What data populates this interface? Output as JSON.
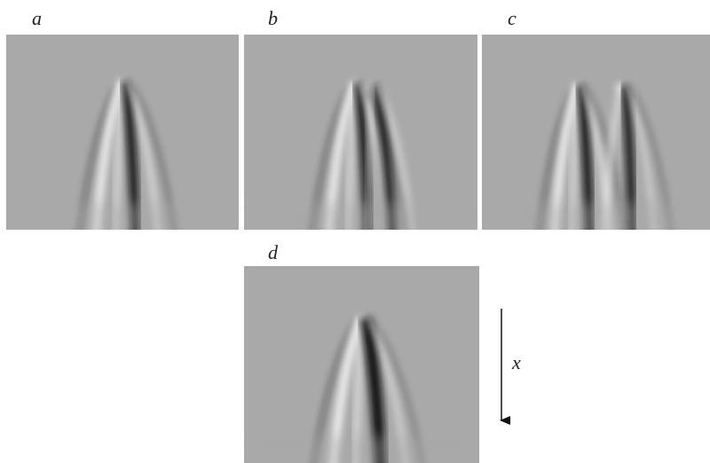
{
  "panels": [
    {
      "label": "a"
    },
    {
      "label": "b"
    },
    {
      "label": "c"
    },
    {
      "label": "d"
    }
  ],
  "arrow": {
    "label": "x"
  }
}
